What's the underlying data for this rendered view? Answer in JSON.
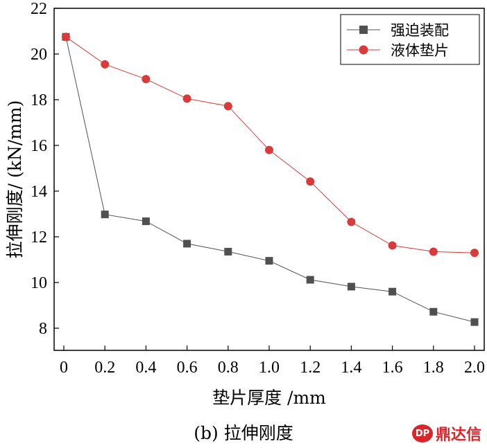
{
  "chart_data": {
    "type": "line",
    "xlabel": "垫片厚度 /mm",
    "ylabel": "拉伸刚度/ (kN/mm)",
    "xlim": [
      0,
      2.0
    ],
    "ylim": [
      7,
      22
    ],
    "x_ticks": [
      "0",
      "0.2",
      "0.4",
      "0.6",
      "0.8",
      "1.0",
      "1.2",
      "1.4",
      "1.6",
      "1.8",
      "2.0"
    ],
    "y_ticks": [
      "8",
      "10",
      "12",
      "14",
      "16",
      "18",
      "20",
      "22"
    ],
    "legend_position": "top-right",
    "series": [
      {
        "name": "强迫装配",
        "marker": "square",
        "color": "#505050",
        "x": [
          0.01,
          0.2,
          0.4,
          0.6,
          0.8,
          1.0,
          1.2,
          1.4,
          1.6,
          1.8,
          2.0
        ],
        "y": [
          20.75,
          12.98,
          12.68,
          11.7,
          11.35,
          10.95,
          10.12,
          9.82,
          9.6,
          8.72,
          8.27
        ]
      },
      {
        "name": "液体垫片",
        "marker": "circle",
        "color": "#d93a3a",
        "x": [
          0.01,
          0.2,
          0.4,
          0.6,
          0.8,
          1.0,
          1.2,
          1.4,
          1.6,
          1.8,
          2.0
        ],
        "y": [
          20.75,
          19.55,
          18.9,
          18.05,
          17.72,
          15.8,
          14.42,
          12.65,
          11.62,
          11.35,
          11.3
        ]
      }
    ]
  },
  "caption": "(b) 拉伸刚度",
  "watermark": {
    "logo": "DP",
    "text": "鼎达信"
  }
}
